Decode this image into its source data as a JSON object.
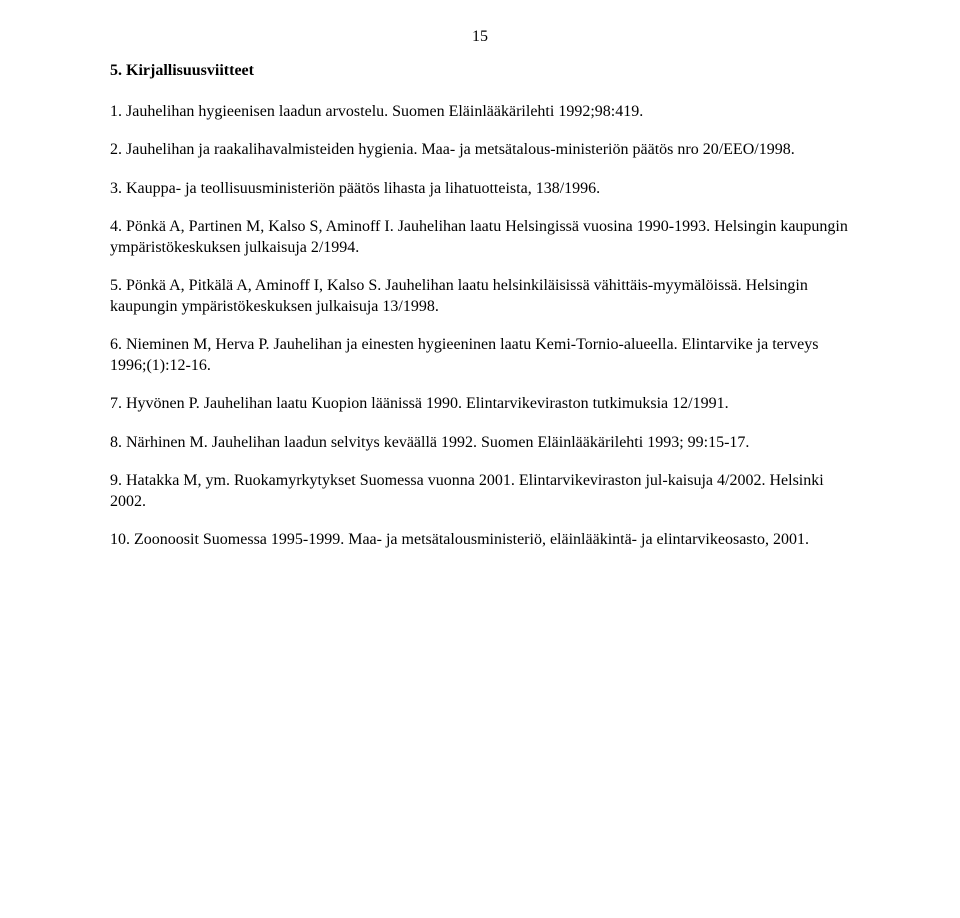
{
  "page_number": "15",
  "heading": "5. Kirjallisuusviitteet",
  "references": {
    "r1": "1. Jauhelihan hygieenisen laadun arvostelu. Suomen Eläinlääkärilehti 1992;98:419.",
    "r2": "2. Jauhelihan ja raakalihavalmisteiden hygienia. Maa- ja metsätalous-ministeriön päätös nro 20/EEO/1998.",
    "r3": "3. Kauppa- ja teollisuusministeriön päätös lihasta ja lihatuotteista, 138/1996.",
    "r4": "4. Pönkä A, Partinen M, Kalso S, Aminoff I. Jauhelihan laatu Helsingissä vuosina 1990-1993. Helsingin kaupungin ympäristökeskuksen julkaisuja 2/1994.",
    "r5": "5. Pönkä A, Pitkälä A, Aminoff I, Kalso S. Jauhelihan laatu helsinkiläisissä vähittäis-myymälöissä. Helsingin kaupungin ympäristökeskuksen julkaisuja 13/1998.",
    "r6": "6. Nieminen M, Herva P. Jauhelihan ja einesten hygieeninen laatu Kemi-Tornio-alueella. Elintarvike ja terveys 1996;(1):12-16.",
    "r7": "7. Hyvönen P. Jauhelihan laatu Kuopion läänissä 1990. Elintarvikeviraston tutkimuksia 12/1991.",
    "r8": "8. Närhinen M. Jauhelihan laadun selvitys keväällä 1992. Suomen Eläinlääkärilehti 1993; 99:15-17.",
    "r9": "9. Hatakka M, ym. Ruokamyrkytykset Suomessa vuonna 2001. Elintarvikeviraston jul-kaisuja 4/2002. Helsinki 2002.",
    "r10": "10. Zoonoosit Suomessa 1995-1999. Maa- ja metsätalousministeriö, eläinlääkintä- ja elintarvikeosasto, 2001."
  }
}
